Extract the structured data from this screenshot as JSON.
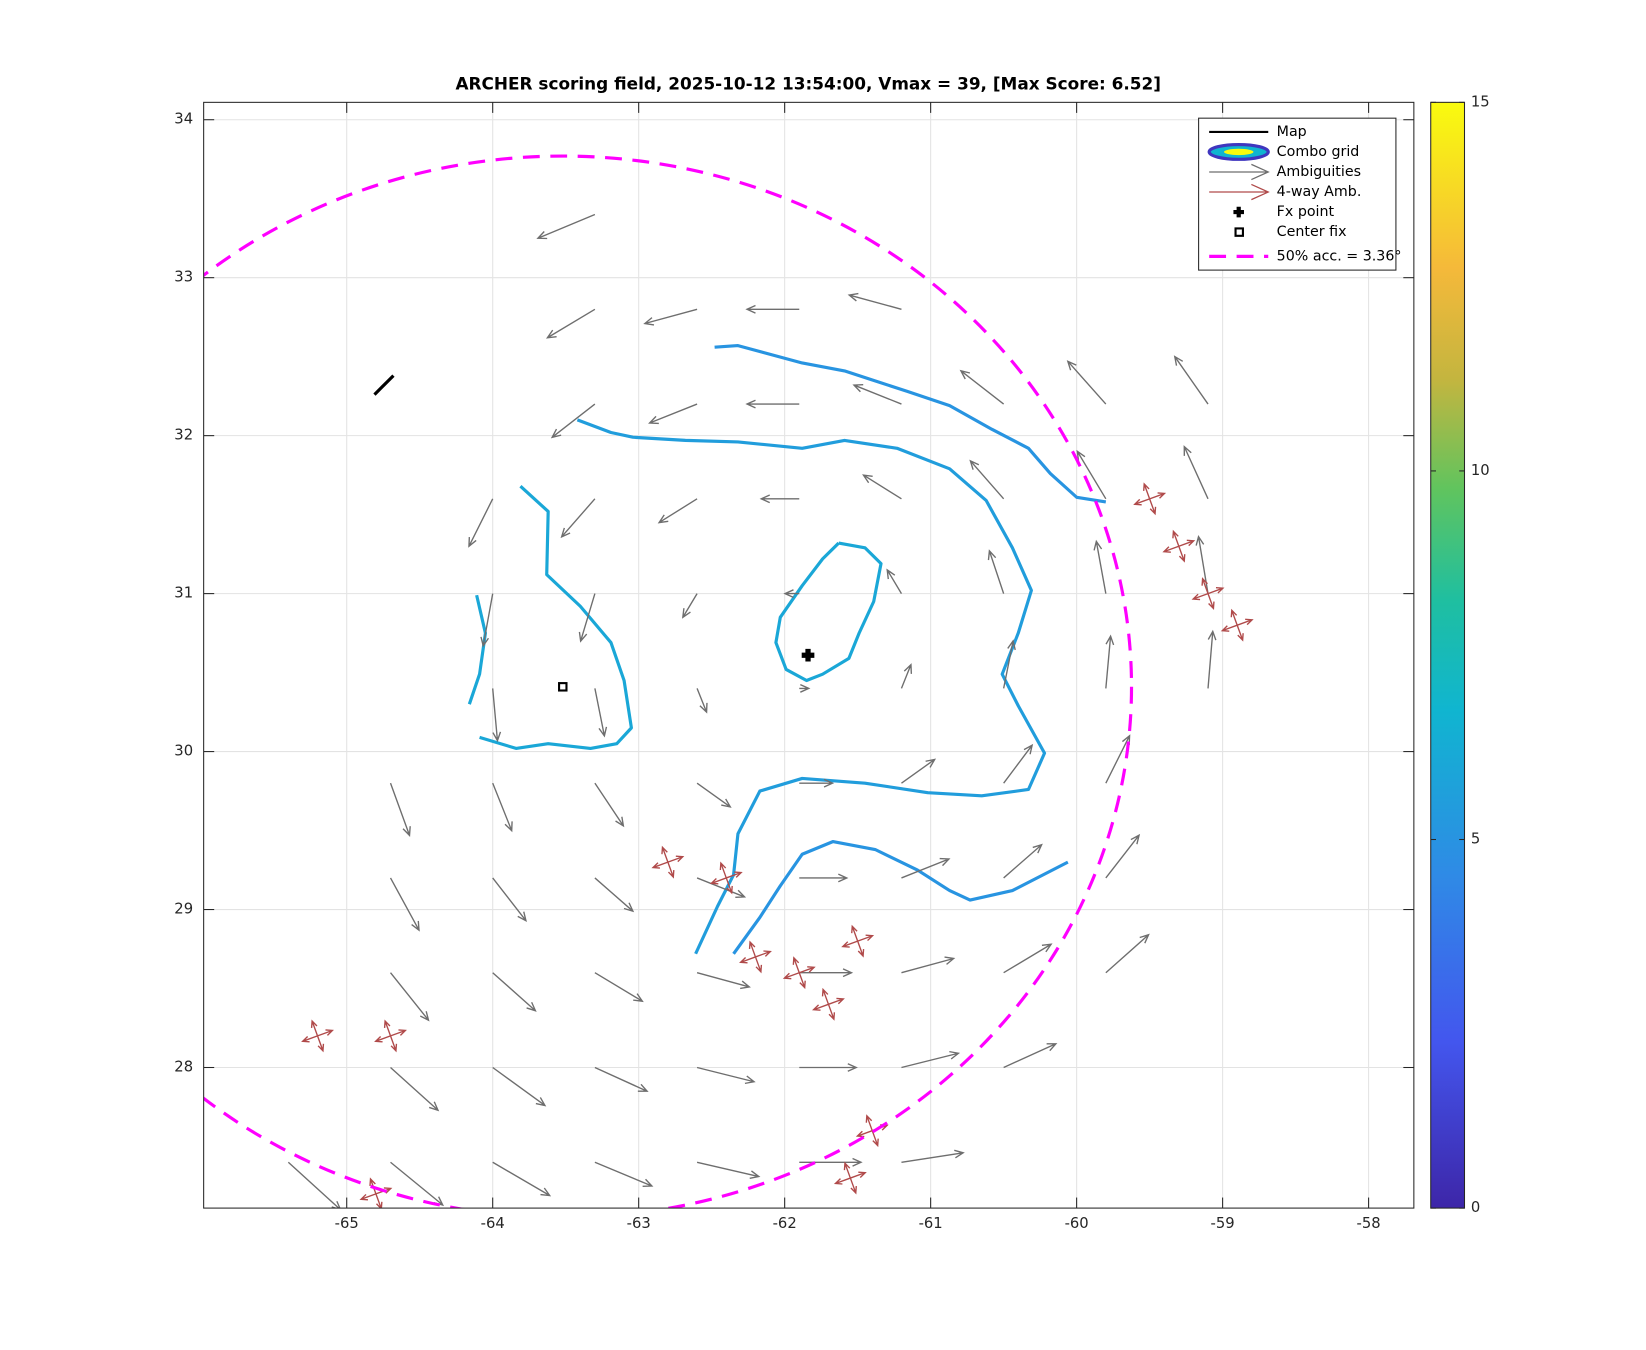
{
  "chart_data": {
    "type": "quiver",
    "title": "ARCHER scoring field, 2025-10-12 13:54:00, Vmax = 39, [Max Score: 6.52]",
    "xlim": [
      -65.98,
      -57.69
    ],
    "ylim": [
      27.11,
      34.11
    ],
    "xticks": [
      -65,
      -64,
      -63,
      -62,
      -61,
      -60,
      -59,
      -58
    ],
    "yticks": [
      28,
      29,
      30,
      31,
      32,
      33,
      34
    ],
    "grid": true,
    "legend": "northeast",
    "colorbar": {
      "colormap": "parula",
      "clim": [
        0,
        15
      ],
      "ticks": [
        0,
        5,
        10,
        15
      ]
    },
    "series": [
      {
        "name": "Map",
        "kind": "line",
        "color": "#000000",
        "x": [
          -64.81,
          -64.68
        ],
        "y": [
          32.26,
          32.38
        ]
      },
      {
        "name": "Combo grid",
        "kind": "contour",
        "contours": [
          {
            "level": 5,
            "x": [
              -62.48,
              -62.32,
              -61.88,
              -61.59,
              -61.16,
              -60.87,
              -60.58,
              -60.33,
              -60.18,
              -60.0,
              -59.8
            ],
            "y": [
              32.56,
              32.57,
              32.46,
              32.41,
              32.28,
              32.19,
              32.04,
              31.92,
              31.76,
              31.61,
              31.58
            ]
          },
          {
            "level": 5.5,
            "x": [
              -63.42,
              -63.19,
              -63.04,
              -62.68,
              -62.32,
              -61.88,
              -61.59,
              -61.23,
              -60.87,
              -60.62,
              -60.44,
              -60.31,
              -60.4,
              -60.51,
              -60.4,
              -60.22,
              -60.33,
              -60.65,
              -61.02,
              -61.45,
              -61.88,
              -62.17,
              -62.32,
              -62.35,
              -62.46,
              -62.61
            ],
            "y": [
              32.1,
              32.02,
              31.99,
              31.97,
              31.96,
              31.92,
              31.97,
              31.92,
              31.79,
              31.59,
              31.29,
              31.02,
              30.75,
              30.49,
              30.29,
              29.99,
              29.76,
              29.72,
              29.74,
              29.8,
              29.83,
              29.75,
              29.48,
              29.22,
              29.02,
              28.72
            ]
          },
          {
            "level": 6,
            "x": [
              -61.63,
              -61.45,
              -61.34,
              -61.39,
              -61.49,
              -61.56,
              -61.74,
              -61.85,
              -61.99,
              -62.06,
              -62.03,
              -61.88,
              -61.74,
              -61.63
            ],
            "y": [
              31.32,
              31.29,
              31.19,
              30.95,
              30.75,
              30.59,
              30.49,
              30.45,
              30.52,
              30.69,
              30.85,
              31.05,
              31.22,
              31.32
            ]
          },
          {
            "level": 6,
            "x": [
              -63.81,
              -63.62,
              -63.63,
              -63.4,
              -63.19,
              -63.1,
              -63.05,
              -63.15,
              -63.33,
              -63.62,
              -63.84,
              -64.09
            ],
            "y": [
              31.68,
              31.52,
              31.12,
              30.92,
              30.69,
              30.45,
              30.15,
              30.05,
              30.02,
              30.05,
              30.02,
              30.09
            ]
          },
          {
            "level": 6,
            "x": [
              -64.11,
              -64.05,
              -64.09,
              -64.16
            ],
            "y": [
              30.99,
              30.75,
              30.49,
              30.3
            ]
          },
          {
            "level": 5,
            "x": [
              -62.35,
              -62.17,
              -62.03,
              -61.88,
              -61.67,
              -61.38,
              -61.09,
              -60.87,
              -60.73,
              -60.44,
              -60.06
            ],
            "y": [
              28.72,
              28.95,
              29.15,
              29.35,
              29.43,
              29.38,
              29.25,
              29.12,
              29.06,
              29.12,
              29.3
            ]
          }
        ]
      },
      {
        "name": "Ambiguities",
        "kind": "quiver",
        "color": "#6e6e6e",
        "x": [
          -65.4,
          -64.7,
          -64.0,
          -63.3,
          -62.6,
          -61.9,
          -61.2,
          -64.7,
          -64.0,
          -63.3,
          -62.6,
          -61.9,
          -61.2,
          -60.5,
          -64.7,
          -64.0,
          -63.3,
          -62.6,
          -61.9,
          -61.2,
          -60.5,
          -59.8,
          -64.7,
          -64.0,
          -63.3,
          -62.6,
          -61.9,
          -61.2,
          -60.5,
          -59.8,
          -64.7,
          -64.0,
          -63.3,
          -62.6,
          -61.9,
          -61.2,
          -60.5,
          -59.8,
          -64.0,
          -63.3,
          -62.6,
          -61.9,
          -61.2,
          -60.5,
          -59.8,
          -59.1,
          -64.0,
          -63.3,
          -62.6,
          -61.9,
          -61.2,
          -60.5,
          -59.8,
          -59.1,
          -64.0,
          -63.3,
          -62.6,
          -61.9,
          -61.2,
          -60.5,
          -59.8,
          -59.1,
          -63.3,
          -62.6,
          -61.9,
          -61.2,
          -60.5,
          -59.8,
          -59.1,
          -63.3,
          -62.6,
          -61.9,
          -61.2,
          -63.3
        ],
        "y": [
          27.4,
          27.4,
          27.4,
          27.4,
          27.4,
          27.4,
          27.4,
          28.0,
          28.0,
          28.0,
          28.0,
          28.0,
          28.0,
          28.0,
          28.6,
          28.6,
          28.6,
          28.6,
          28.6,
          28.6,
          28.6,
          28.6,
          29.2,
          29.2,
          29.2,
          29.2,
          29.2,
          29.2,
          29.2,
          29.2,
          29.8,
          29.8,
          29.8,
          29.8,
          29.8,
          29.8,
          29.8,
          29.8,
          30.4,
          30.4,
          30.4,
          30.4,
          30.4,
          30.4,
          30.4,
          30.4,
          31.0,
          31.0,
          31.0,
          31.0,
          31.0,
          31.0,
          31.0,
          31.0,
          31.6,
          31.6,
          31.6,
          31.6,
          31.6,
          31.6,
          31.6,
          31.6,
          32.2,
          32.2,
          32.2,
          32.2,
          32.2,
          32.2,
          32.2,
          32.8,
          32.8,
          32.8,
          32.8,
          33.4
        ],
        "u": [
          11,
          11,
          12,
          12,
          13,
          13,
          13,
          10,
          11,
          11,
          12,
          12,
          12,
          11,
          8,
          9,
          10,
          11,
          11,
          11,
          10,
          9,
          6,
          7,
          8,
          10,
          10,
          10,
          8,
          7,
          4,
          4,
          6,
          7,
          7,
          7,
          6,
          5,
          1,
          2,
          2,
          2,
          2,
          2,
          1,
          1,
          -2,
          -3,
          -3,
          -3,
          -3,
          -3,
          -2,
          -2,
          -5,
          -7,
          -8,
          -8,
          -8,
          -7,
          -6,
          -5,
          -9,
          -10,
          -11,
          -10,
          -9,
          -8,
          -7,
          -10,
          -11,
          -11,
          -11,
          -12
        ],
        "v": [
          -10,
          -9,
          -7,
          -5,
          -3,
          0,
          2,
          -9,
          -8,
          -5,
          -3,
          0,
          3,
          5,
          -10,
          -8,
          -6,
          -3,
          0,
          3,
          6,
          8,
          -11,
          -9,
          -7,
          -4,
          0,
          4,
          7,
          9,
          -11,
          -10,
          -9,
          -5,
          0,
          5,
          8,
          10,
          -11,
          -10,
          -5,
          0,
          5,
          10,
          11,
          12,
          -11,
          -10,
          -5,
          0,
          5,
          9,
          11,
          12,
          -10,
          -8,
          -5,
          0,
          5,
          8,
          10,
          11,
          -7,
          -4,
          0,
          4,
          7,
          9,
          10,
          -6,
          -3,
          0,
          3,
          -5
        ]
      },
      {
        "name": "4-way Amb.",
        "kind": "cross",
        "color": "#b04a4a",
        "x": [
          -59.3,
          -59.1,
          -58.9,
          -62.8,
          -62.4,
          -62.2,
          -61.9,
          -61.7,
          -61.5,
          -61.4,
          -61.55,
          -64.8,
          -65.2,
          -64.7,
          -59.5
        ],
        "y": [
          31.3,
          31.0,
          30.8,
          29.3,
          29.2,
          28.7,
          28.6,
          28.4,
          28.8,
          27.6,
          27.3,
          27.2,
          28.2,
          28.2,
          31.6
        ]
      },
      {
        "name": "Fx point",
        "kind": "plus",
        "color": "#000000",
        "x": [
          -61.84
        ],
        "y": [
          30.61
        ]
      },
      {
        "name": "Center fix",
        "kind": "square",
        "color": "#000000",
        "x": [
          -63.52
        ],
        "y": [
          30.41
        ]
      },
      {
        "name": "50% acc. = 3.36°",
        "kind": "circle",
        "color": "#ff00ff",
        "x": [
          -63.52
        ],
        "y": [
          30.41
        ],
        "radius": 3.36
      }
    ]
  }
}
